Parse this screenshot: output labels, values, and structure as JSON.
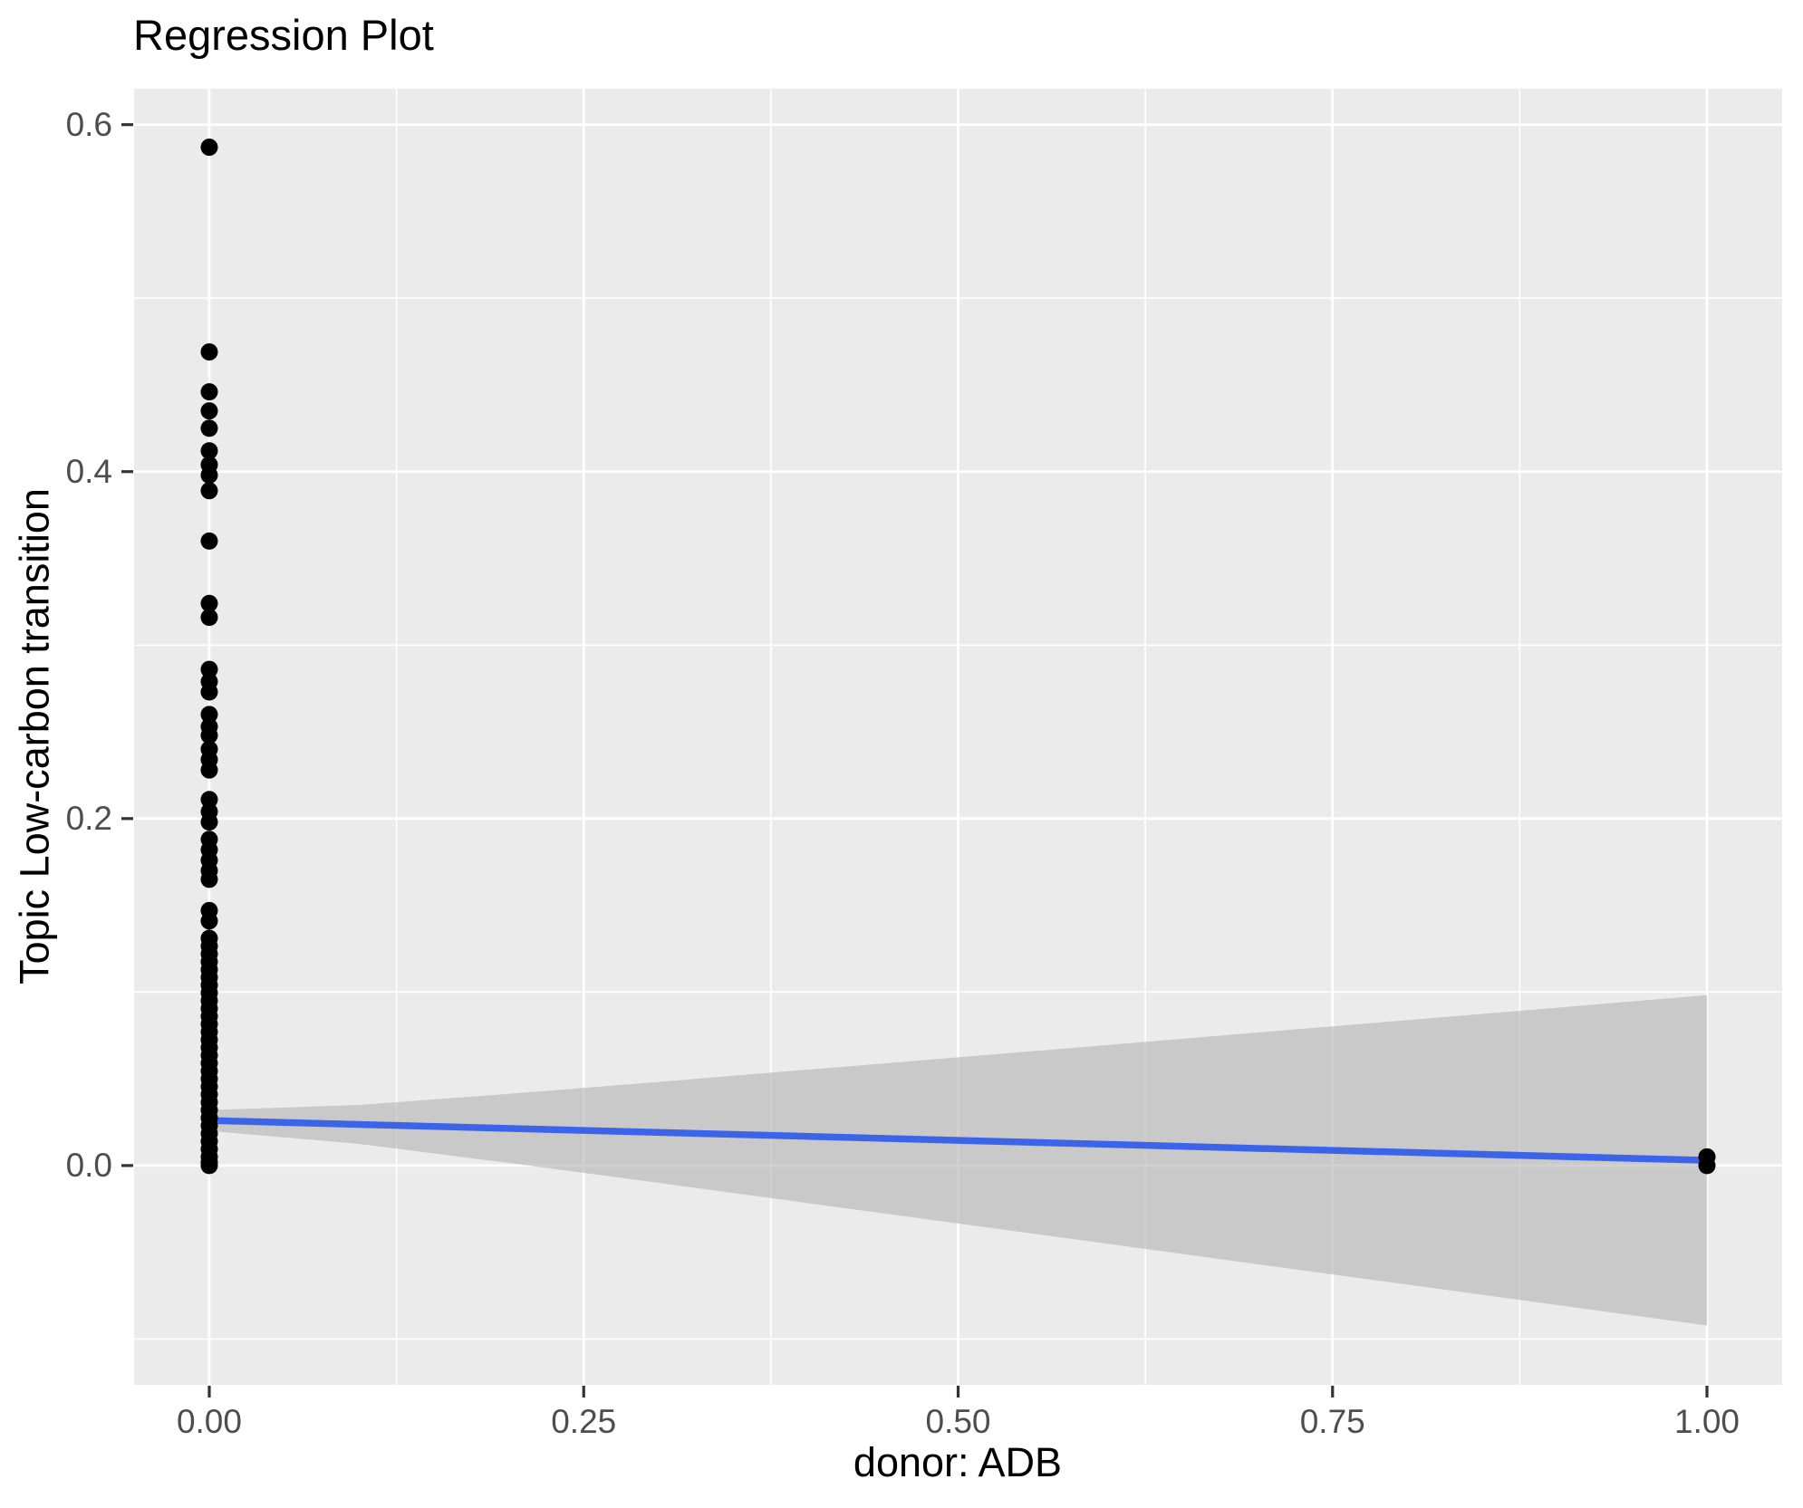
{
  "chart_data": {
    "type": "scatter",
    "title": "Regression Plot",
    "xlabel": "donor: ADB",
    "ylabel": "Topic Low-carbon transition",
    "legend": false,
    "grid": true,
    "x_domain": [
      -0.0502,
      1.0502
    ],
    "y_domain": [
      -0.1264,
      0.6207
    ],
    "x_ticks": [
      0,
      0.25,
      0.5,
      0.75,
      1.0
    ],
    "x_tick_labels": [
      "0.00",
      "0.25",
      "0.50",
      "0.75",
      "1.00"
    ],
    "x_minor_ticks": [
      0.125,
      0.375,
      0.625,
      0.875
    ],
    "y_ticks": [
      0,
      0.2,
      0.4,
      0.6
    ],
    "y_tick_labels": [
      "0.0",
      "0.2",
      "0.4",
      "0.6"
    ],
    "y_minor_ticks": [
      -0.1,
      0.1,
      0.3,
      0.5
    ],
    "points": {
      "x0_group": {
        "x": 0,
        "y": [
          0.587,
          0.469,
          0.446,
          0.435,
          0.425,
          0.412,
          0.404,
          0.398,
          0.389,
          0.36,
          0.324,
          0.316,
          0.286,
          0.279,
          0.273,
          0.26,
          0.253,
          0.248,
          0.24,
          0.234,
          0.228,
          0.211,
          0.204,
          0.198,
          0.188,
          0.182,
          0.176,
          0.17,
          0.165,
          0.147,
          0.141,
          0.131,
          0.1265,
          0.122,
          0.1175,
          0.113,
          0.1085,
          0.104,
          0.0995,
          0.095,
          0.0905,
          0.086,
          0.0815,
          0.077,
          0.0725,
          0.068,
          0.0635,
          0.059,
          0.0545,
          0.05,
          0.0455,
          0.041,
          0.0365,
          0.032,
          0.0275,
          0.023,
          0.0185,
          0.014,
          0.0095,
          0.005,
          0.002,
          0.0
        ]
      },
      "x1_group": {
        "x": 1,
        "y": [
          0.005,
          0.0
        ]
      }
    },
    "regression_line": {
      "x": [
        0,
        1
      ],
      "y": [
        0.026,
        0.003
      ]
    },
    "confidence_ribbon": {
      "x": [
        0,
        0.1,
        0.2,
        0.3,
        0.4,
        0.5,
        0.6,
        0.7,
        0.8,
        0.9,
        1.0
      ],
      "upper": [
        0.032,
        0.0349,
        0.0413,
        0.0482,
        0.0553,
        0.0624,
        0.0695,
        0.0767,
        0.0838,
        0.091,
        0.0982
      ],
      "lower": [
        0.02,
        0.0125,
        0.0015,
        -0.01,
        -0.0217,
        -0.0334,
        -0.0451,
        -0.0569,
        -0.0686,
        -0.0804,
        -0.0922
      ]
    },
    "colors": {
      "panel_bg": "#EBEBEB",
      "grid": "#FFFFFF",
      "point": "#000000",
      "line": "#3B64E9",
      "ribbon": "rgba(176,176,176,0.58)",
      "tick_mark": "#333333",
      "tick_text": "#4D4D4D",
      "title_text": "#000000"
    }
  }
}
